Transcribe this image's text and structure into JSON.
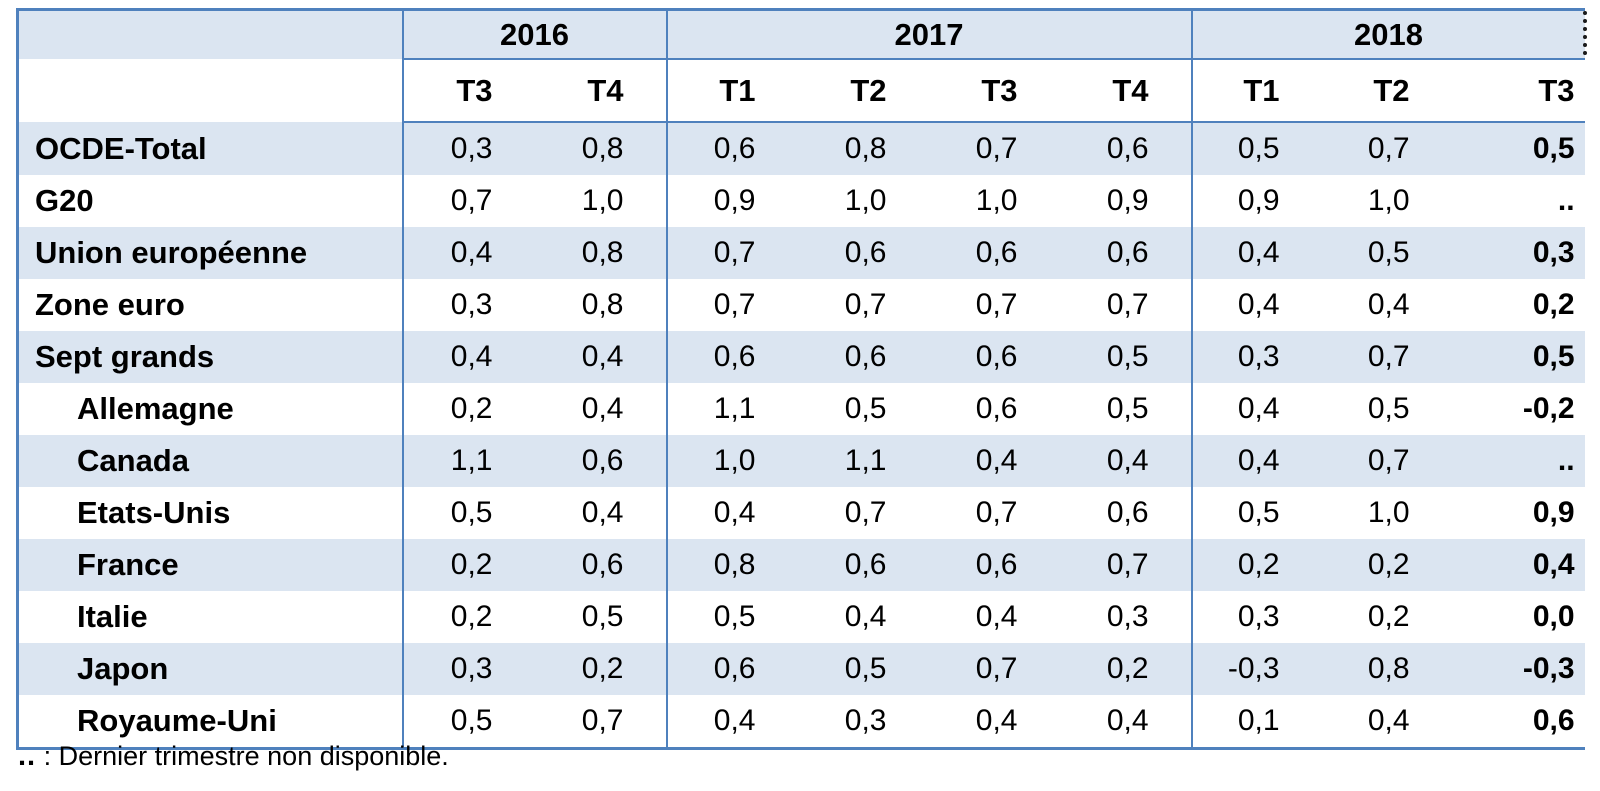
{
  "table": {
    "year_groups": [
      {
        "label": "2016",
        "quarters": [
          "T3",
          "T4"
        ]
      },
      {
        "label": "2017",
        "quarters": [
          "T1",
          "T2",
          "T3",
          "T4"
        ]
      },
      {
        "label": "2018",
        "quarters": [
          "T1",
          "T2",
          "T3"
        ]
      }
    ],
    "rows": [
      {
        "label": "OCDE-Total",
        "indent": false,
        "values": [
          "0,3",
          "0,8",
          "0,6",
          "0,8",
          "0,7",
          "0,6",
          "0,5",
          "0,7",
          "0,5"
        ]
      },
      {
        "label": "G20",
        "indent": false,
        "values": [
          "0,7",
          "1,0",
          "0,9",
          "1,0",
          "1,0",
          "0,9",
          "0,9",
          "1,0",
          ".."
        ]
      },
      {
        "label": "Union européenne",
        "indent": false,
        "values": [
          "0,4",
          "0,8",
          "0,7",
          "0,6",
          "0,6",
          "0,6",
          "0,4",
          "0,5",
          "0,3"
        ]
      },
      {
        "label": "Zone euro",
        "indent": false,
        "values": [
          "0,3",
          "0,8",
          "0,7",
          "0,7",
          "0,7",
          "0,7",
          "0,4",
          "0,4",
          "0,2"
        ]
      },
      {
        "label": "Sept grands",
        "indent": false,
        "values": [
          "0,4",
          "0,4",
          "0,6",
          "0,6",
          "0,6",
          "0,5",
          "0,3",
          "0,7",
          "0,5"
        ]
      },
      {
        "label": "Allemagne",
        "indent": true,
        "values": [
          "0,2",
          "0,4",
          "1,1",
          "0,5",
          "0,6",
          "0,5",
          "0,4",
          "0,5",
          "-0,2"
        ]
      },
      {
        "label": "Canada",
        "indent": true,
        "values": [
          "1,1",
          "0,6",
          "1,0",
          "1,1",
          "0,4",
          "0,4",
          "0,4",
          "0,7",
          ".."
        ]
      },
      {
        "label": "Etats-Unis",
        "indent": true,
        "values": [
          "0,5",
          "0,4",
          "0,4",
          "0,7",
          "0,7",
          "0,6",
          "0,5",
          "1,0",
          "0,9"
        ]
      },
      {
        "label": "France",
        "indent": true,
        "values": [
          "0,2",
          "0,6",
          "0,8",
          "0,6",
          "0,6",
          "0,7",
          "0,2",
          "0,2",
          "0,4"
        ]
      },
      {
        "label": "Italie",
        "indent": true,
        "values": [
          "0,2",
          "0,5",
          "0,5",
          "0,4",
          "0,4",
          "0,3",
          "0,3",
          "0,2",
          "0,0"
        ]
      },
      {
        "label": "Japon",
        "indent": true,
        "values": [
          "0,3",
          "0,2",
          "0,6",
          "0,5",
          "0,7",
          "0,2",
          "-0,3",
          "0,8",
          "-0,3"
        ]
      },
      {
        "label": "Royaume-Uni",
        "indent": true,
        "values": [
          "0,5",
          "0,7",
          "0,4",
          "0,3",
          "0,4",
          "0,4",
          "0,1",
          "0,4",
          "0,6"
        ]
      }
    ]
  },
  "footnote": {
    "symbol": "..",
    "text": " : Dernier trimestre non disponible."
  },
  "colors": {
    "border_blue": "#4f81bd",
    "stripe_blue": "#dbe5f1",
    "background": "#ffffff",
    "text": "#000000"
  },
  "chart_data": {
    "type": "table",
    "column_groups": [
      {
        "label": "2016",
        "columns": [
          "T3",
          "T4"
        ]
      },
      {
        "label": "2017",
        "columns": [
          "T1",
          "T2",
          "T3",
          "T4"
        ]
      },
      {
        "label": "2018",
        "columns": [
          "T1",
          "T2",
          "T3"
        ]
      }
    ],
    "columns": [
      "2016 T3",
      "2016 T4",
      "2017 T1",
      "2017 T2",
      "2017 T3",
      "2017 T4",
      "2018 T1",
      "2018 T2",
      "2018 T3"
    ],
    "rows": [
      {
        "label": "OCDE-Total",
        "values": [
          0.3,
          0.8,
          0.6,
          0.8,
          0.7,
          0.6,
          0.5,
          0.7,
          0.5
        ]
      },
      {
        "label": "G20",
        "values": [
          0.7,
          1.0,
          0.9,
          1.0,
          1.0,
          0.9,
          0.9,
          1.0,
          null
        ]
      },
      {
        "label": "Union européenne",
        "values": [
          0.4,
          0.8,
          0.7,
          0.6,
          0.6,
          0.6,
          0.4,
          0.5,
          0.3
        ]
      },
      {
        "label": "Zone euro",
        "values": [
          0.3,
          0.8,
          0.7,
          0.7,
          0.7,
          0.7,
          0.4,
          0.4,
          0.2
        ]
      },
      {
        "label": "Sept grands",
        "values": [
          0.4,
          0.4,
          0.6,
          0.6,
          0.6,
          0.5,
          0.3,
          0.7,
          0.5
        ]
      },
      {
        "label": "Allemagne",
        "values": [
          0.2,
          0.4,
          1.1,
          0.5,
          0.6,
          0.5,
          0.4,
          0.5,
          -0.2
        ]
      },
      {
        "label": "Canada",
        "values": [
          1.1,
          0.6,
          1.0,
          1.1,
          0.4,
          0.4,
          0.4,
          0.7,
          null
        ]
      },
      {
        "label": "Etats-Unis",
        "values": [
          0.5,
          0.4,
          0.4,
          0.7,
          0.7,
          0.6,
          0.5,
          1.0,
          0.9
        ]
      },
      {
        "label": "France",
        "values": [
          0.2,
          0.6,
          0.8,
          0.6,
          0.6,
          0.7,
          0.2,
          0.2,
          0.4
        ]
      },
      {
        "label": "Italie",
        "values": [
          0.2,
          0.5,
          0.5,
          0.4,
          0.4,
          0.3,
          0.3,
          0.2,
          0.0
        ]
      },
      {
        "label": "Japon",
        "values": [
          0.3,
          0.2,
          0.6,
          0.5,
          0.7,
          0.2,
          -0.3,
          0.8,
          -0.3
        ]
      },
      {
        "label": "Royaume-Uni",
        "values": [
          0.5,
          0.7,
          0.4,
          0.3,
          0.4,
          0.4,
          0.1,
          0.4,
          0.6
        ]
      }
    ],
    "missing_marker": "..",
    "decimal_separator": ",",
    "notes": ".. : Dernier trimestre non disponible."
  }
}
